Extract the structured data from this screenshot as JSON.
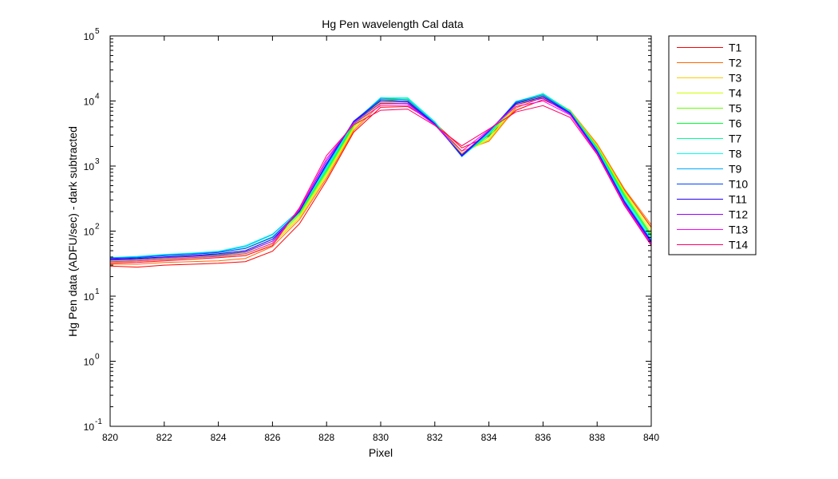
{
  "chart_data": {
    "type": "line",
    "title": "Hg Pen wavelength Cal data",
    "xlabel": "Pixel",
    "ylabel": "Hg Pen data (ADFU/sec) - dark subtracted",
    "xlim": [
      820,
      840
    ],
    "ylim": [
      0.1,
      100000
    ],
    "yscale": "log",
    "x_ticks": [
      "820",
      "822",
      "824",
      "826",
      "828",
      "830",
      "832",
      "834",
      "836",
      "838",
      "840"
    ],
    "y_ticks": [
      {
        "base": "10",
        "exp": "-1"
      },
      {
        "base": "10",
        "exp": "0"
      },
      {
        "base": "10",
        "exp": "1"
      },
      {
        "base": "10",
        "exp": "2"
      },
      {
        "base": "10",
        "exp": "3"
      },
      {
        "base": "10",
        "exp": "4"
      },
      {
        "base": "10",
        "exp": "5"
      }
    ],
    "legend_position": "outside-right",
    "grid": false,
    "x": [
      820,
      821,
      822,
      823,
      824,
      825,
      826,
      827,
      828,
      829,
      830,
      831,
      832,
      833,
      834,
      835,
      836,
      837,
      838,
      839,
      840
    ],
    "series": [
      {
        "name": "T1",
        "color": "#ff0000",
        "values": [
          29,
          28,
          30,
          31,
          32,
          34,
          49,
          130,
          600,
          3300,
          8000,
          8200,
          4600,
          1900,
          2900,
          7200,
          10500,
          6800,
          2100,
          430,
          115
        ]
      },
      {
        "name": "T2",
        "color": "#ff6600",
        "values": [
          31,
          31,
          33,
          34,
          35,
          38,
          58,
          150,
          650,
          3500,
          9000,
          9200,
          4700,
          1700,
          2400,
          7800,
          11500,
          7200,
          2200,
          450,
          125
        ]
      },
      {
        "name": "T3",
        "color": "#ffcc00",
        "values": [
          33,
          34,
          36,
          37,
          39,
          42,
          63,
          160,
          700,
          3700,
          9500,
          9700,
          4700,
          1600,
          2500,
          8200,
          12000,
          7100,
          2100,
          420,
          110
        ]
      },
      {
        "name": "T4",
        "color": "#ccff00",
        "values": [
          34,
          35,
          37,
          38,
          40,
          44,
          66,
          170,
          750,
          3900,
          10000,
          10200,
          4700,
          1550,
          2600,
          8600,
          12400,
          7100,
          2000,
          400,
          100
        ]
      },
      {
        "name": "T5",
        "color": "#66ff00",
        "values": [
          35,
          36,
          38,
          40,
          42,
          47,
          70,
          180,
          800,
          4100,
          10500,
          10600,
          4800,
          1500,
          2800,
          9000,
          12800,
          7100,
          1950,
          380,
          90
        ]
      },
      {
        "name": "T6",
        "color": "#00ff33",
        "values": [
          36,
          38,
          40,
          42,
          44,
          50,
          75,
          190,
          850,
          4300,
          11000,
          11000,
          4800,
          1450,
          3000,
          9400,
          13000,
          7000,
          1900,
          360,
          85
        ]
      },
      {
        "name": "T7",
        "color": "#00ff99",
        "values": [
          38,
          40,
          42,
          44,
          47,
          55,
          82,
          200,
          900,
          4500,
          11200,
          11200,
          4800,
          1400,
          3100,
          9700,
          13000,
          6900,
          1850,
          340,
          80
        ]
      },
      {
        "name": "T8",
        "color": "#00ffee",
        "values": [
          39,
          41,
          44,
          46,
          49,
          60,
          90,
          210,
          950,
          4700,
          11300,
          11000,
          4700,
          1400,
          3200,
          9900,
          12800,
          6800,
          1800,
          320,
          75
        ]
      },
      {
        "name": "T9",
        "color": "#00aaff",
        "values": [
          39,
          40,
          43,
          45,
          48,
          58,
          88,
          210,
          1000,
          4800,
          11000,
          10500,
          4600,
          1400,
          3300,
          9800,
          12500,
          6700,
          1750,
          300,
          72
        ]
      },
      {
        "name": "T10",
        "color": "#0044ff",
        "values": [
          38,
          39,
          42,
          44,
          47,
          54,
          80,
          205,
          1050,
          4900,
          10500,
          10000,
          4500,
          1420,
          3400,
          9500,
          12000,
          6600,
          1700,
          290,
          70
        ]
      },
      {
        "name": "T11",
        "color": "#2200ff",
        "values": [
          37,
          38,
          40,
          42,
          45,
          50,
          75,
          200,
          1100,
          4800,
          10000,
          9600,
          4400,
          1450,
          3450,
          9200,
          11500,
          6500,
          1650,
          280,
          68
        ]
      },
      {
        "name": "T12",
        "color": "#9900ff",
        "values": [
          36,
          37,
          39,
          41,
          43,
          48,
          70,
          210,
          1200,
          4700,
          9300,
          9100,
          4300,
          1500,
          3500,
          8800,
          11000,
          6300,
          1600,
          270,
          65
        ]
      },
      {
        "name": "T13",
        "color": "#ff00ff",
        "values": [
          34,
          35,
          37,
          39,
          41,
          45,
          65,
          220,
          1300,
          4500,
          8500,
          8600,
          4300,
          1700,
          3600,
          8200,
          10000,
          6100,
          1550,
          260,
          62
        ]
      },
      {
        "name": "T14",
        "color": "#ff0066",
        "values": [
          32,
          33,
          35,
          37,
          39,
          42,
          60,
          230,
          1450,
          4300,
          7200,
          7500,
          4200,
          2050,
          3700,
          6800,
          8500,
          5600,
          1500,
          250,
          60
        ]
      }
    ]
  }
}
